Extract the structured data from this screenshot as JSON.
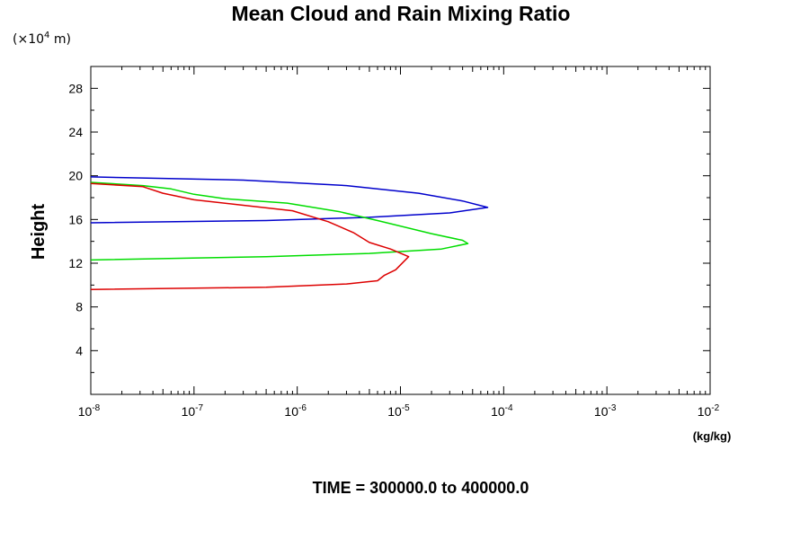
{
  "chart_data": {
    "type": "line",
    "title": "Mean Cloud and Rain Mixing Ratio",
    "y_unit_note": "(×10",
    "y_unit_exp": "4",
    "y_unit_suffix": " m)",
    "ylabel": "Height",
    "xlabel": "(kg/kg)",
    "footer": "TIME = 300000.0 to 400000.0",
    "x_scale": "log",
    "xlim": [
      1e-08,
      0.01
    ],
    "ylim": [
      0,
      30
    ],
    "x_ticks": [
      {
        "base": "10",
        "exp": "-8",
        "value": 1e-08
      },
      {
        "base": "10",
        "exp": "-7",
        "value": 1e-07
      },
      {
        "base": "10",
        "exp": "-6",
        "value": 1e-06
      },
      {
        "base": "10",
        "exp": "-5",
        "value": 1e-05
      },
      {
        "base": "10",
        "exp": "-4",
        "value": 0.0001
      },
      {
        "base": "10",
        "exp": "-3",
        "value": 0.001
      },
      {
        "base": "10",
        "exp": "-2",
        "value": 0.01
      }
    ],
    "y_ticks": [
      "4",
      "8",
      "12",
      "16",
      "20",
      "24",
      "28"
    ],
    "y_tick_values": [
      4,
      8,
      12,
      16,
      20,
      24,
      28
    ],
    "grid": false,
    "legend": "none",
    "series": [
      {
        "color": "#0000cc",
        "x": [
          1e-08,
          3e-07,
          3e-06,
          1.5e-05,
          4e-05,
          7e-05,
          3e-05,
          5e-06,
          5e-07,
          1e-08
        ],
        "y": [
          19.9,
          19.6,
          19.1,
          18.4,
          17.7,
          17.1,
          16.6,
          16.2,
          15.9,
          15.7
        ]
      },
      {
        "color": "#00dd00",
        "x": [
          1e-08,
          3.2e-08,
          6e-08,
          1e-07,
          2e-07,
          8e-07,
          2.6e-06,
          6e-06,
          2e-05,
          4e-05,
          4.5e-05,
          2.5e-05,
          5e-06,
          5e-07,
          1e-08
        ],
        "y": [
          19.4,
          19.1,
          18.8,
          18.3,
          17.9,
          17.5,
          16.7,
          15.9,
          14.7,
          14.1,
          13.8,
          13.3,
          12.9,
          12.6,
          12.3
        ]
      },
      {
        "color": "#dd0000",
        "x": [
          1e-08,
          3.2e-08,
          5e-08,
          1e-07,
          3e-07,
          9e-07,
          2e-06,
          3.5e-06,
          5e-06,
          8e-06,
          1.2e-05,
          9e-06,
          7e-06,
          6e-06,
          3e-06,
          5e-07,
          1e-08
        ],
        "y": [
          19.3,
          19.0,
          18.4,
          17.8,
          17.3,
          16.8,
          15.8,
          14.8,
          13.9,
          13.3,
          12.6,
          11.4,
          10.9,
          10.4,
          10.1,
          9.8,
          9.6
        ]
      }
    ]
  }
}
